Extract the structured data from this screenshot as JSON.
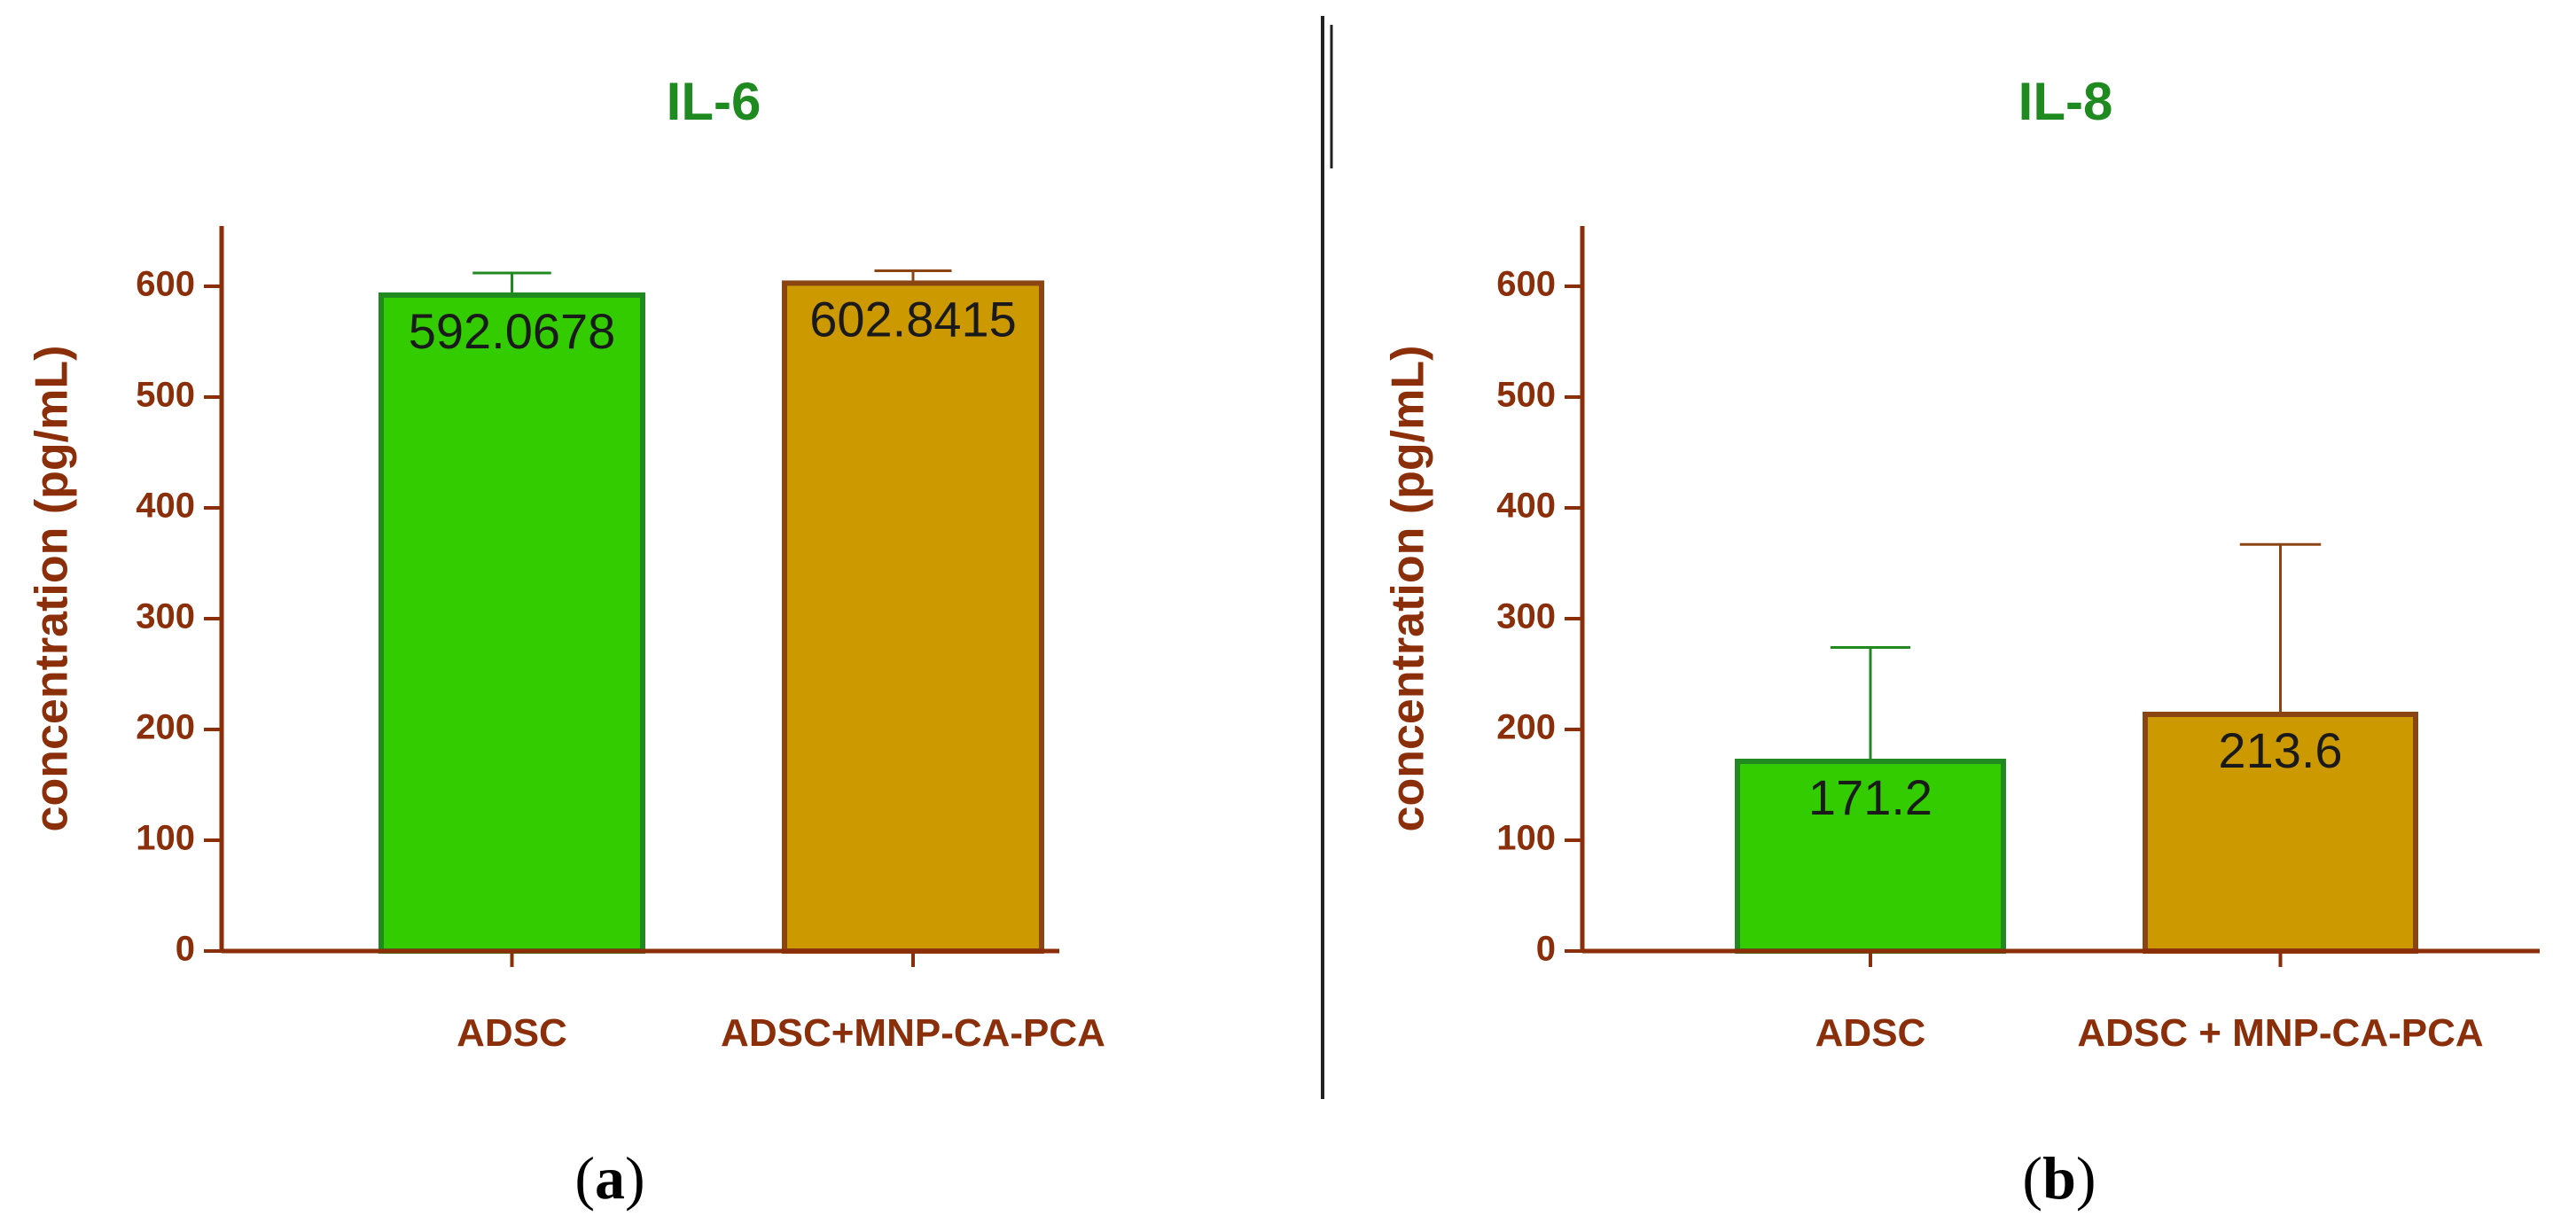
{
  "colors": {
    "axis": "#8b2e0a",
    "title": "#1f8a1f",
    "adsc_fill": "#33cc00",
    "adsc_stroke": "#208a20",
    "mnp_fill": "#cc9900",
    "mnp_stroke": "#8b4513",
    "divider": "#222222",
    "value_text": "#1a1a1a",
    "panel_label": "#000000"
  },
  "chart_data": [
    {
      "type": "bar",
      "panel_label": "a",
      "title": "IL-6",
      "ylabel": "concentration (pg/mL)",
      "xlabel": "",
      "ylim": [
        0,
        650
      ],
      "yticks": [
        0,
        100,
        200,
        300,
        400,
        500,
        600
      ],
      "categories": [
        "ADSC",
        "ADSC+MNP-CA-PCA"
      ],
      "values": [
        592.0678,
        602.8415
      ],
      "value_labels": [
        "592.0678",
        "602.8415"
      ],
      "error_upper": [
        612,
        614
      ],
      "grid": false
    },
    {
      "type": "bar",
      "panel_label": "b",
      "title": "IL-8",
      "ylabel": "concentration (pg/mL)",
      "xlabel": "",
      "ylim": [
        0,
        650
      ],
      "yticks": [
        0,
        100,
        200,
        300,
        400,
        500,
        600
      ],
      "categories": [
        "ADSC",
        "ADSC + MNP-CA-PCA"
      ],
      "values": [
        171.2,
        213.6
      ],
      "value_labels": [
        "171.2",
        "213.6"
      ],
      "error_upper": [
        274,
        367
      ],
      "grid": false
    }
  ]
}
